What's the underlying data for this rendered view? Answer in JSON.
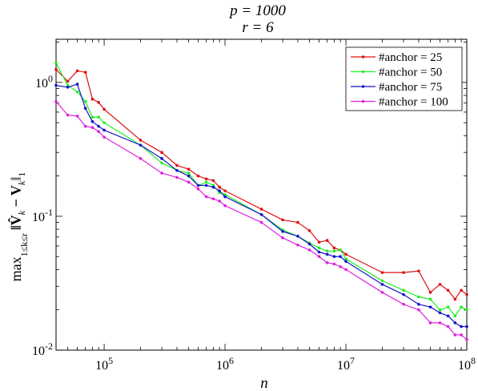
{
  "chart_data": {
    "type": "line",
    "title_lines": [
      "p = 1000",
      "r = 6"
    ],
    "xlabel": "n",
    "ylabel": "max_{1≤k≤r} ||V̂_k − V_k||_1",
    "ylabel_parts": {
      "op": "max",
      "sub": "1≤k≤r",
      "expr": "‖V̂",
      "k1": "k",
      "minus": " − V",
      "k2": "k",
      "norm": "‖",
      "one": "1"
    },
    "x_scale": "log",
    "y_scale": "log",
    "xlim": [
      40000,
      100000000
    ],
    "ylim": [
      0.01,
      2.1
    ],
    "x_ticks": [
      {
        "value": 100000,
        "base": "10",
        "exp": "5"
      },
      {
        "value": 1000000,
        "base": "10",
        "exp": "6"
      },
      {
        "value": 10000000,
        "base": "10",
        "exp": "7"
      },
      {
        "value": 100000000,
        "base": "10",
        "exp": "8"
      }
    ],
    "y_ticks": [
      {
        "value": 0.01,
        "base": "10",
        "exp": "-2"
      },
      {
        "value": 0.1,
        "base": "10",
        "exp": "-1"
      },
      {
        "value": 1,
        "base": "10",
        "exp": "0"
      }
    ],
    "legend_position": "top-right",
    "x": [
      40000,
      50000,
      60000,
      70000,
      80000,
      90000,
      100000,
      200000,
      300000,
      400000,
      500000,
      600000,
      700000,
      800000,
      900000,
      1000000,
      2000000,
      3000000,
      4000000,
      5000000,
      6000000,
      7000000,
      8000000,
      9000000,
      10000000,
      20000000,
      30000000,
      40000000,
      50000000,
      60000000,
      70000000,
      80000000,
      90000000,
      100000000
    ],
    "series": [
      {
        "name": "#anchor = 25",
        "color": "#e01010",
        "values": [
          1.25,
          1.02,
          1.22,
          1.19,
          0.75,
          0.71,
          0.63,
          0.37,
          0.3,
          0.24,
          0.225,
          0.2,
          0.19,
          0.185,
          0.165,
          0.155,
          0.113,
          0.094,
          0.09,
          0.078,
          0.064,
          0.066,
          0.058,
          0.056,
          0.052,
          0.038,
          0.038,
          0.039,
          0.027,
          0.031,
          0.028,
          0.024,
          0.028,
          0.026
        ]
      },
      {
        "name": "#anchor = 50",
        "color": "#22ee22",
        "values": [
          1.4,
          0.95,
          0.85,
          0.72,
          0.55,
          0.55,
          0.5,
          0.34,
          0.25,
          0.22,
          0.21,
          0.17,
          0.18,
          0.17,
          0.15,
          0.145,
          0.103,
          0.079,
          0.071,
          0.063,
          0.058,
          0.055,
          0.055,
          0.056,
          0.048,
          0.033,
          0.028,
          0.025,
          0.024,
          0.02,
          0.021,
          0.018,
          0.021,
          0.02
        ]
      },
      {
        "name": "#anchor = 75",
        "color": "#1414cc",
        "values": [
          0.95,
          0.92,
          0.97,
          0.64,
          0.51,
          0.47,
          0.44,
          0.34,
          0.27,
          0.22,
          0.2,
          0.17,
          0.17,
          0.165,
          0.155,
          0.14,
          0.103,
          0.077,
          0.071,
          0.062,
          0.054,
          0.052,
          0.05,
          0.05,
          0.046,
          0.031,
          0.026,
          0.022,
          0.021,
          0.019,
          0.018,
          0.016,
          0.015,
          0.015
        ]
      },
      {
        "name": "#anchor = 100",
        "color": "#dd22dd",
        "values": [
          0.72,
          0.57,
          0.56,
          0.47,
          0.46,
          0.43,
          0.39,
          0.27,
          0.21,
          0.195,
          0.18,
          0.16,
          0.14,
          0.135,
          0.13,
          0.12,
          0.09,
          0.069,
          0.061,
          0.056,
          0.05,
          0.045,
          0.044,
          0.042,
          0.04,
          0.027,
          0.022,
          0.02,
          0.016,
          0.016,
          0.015,
          0.013,
          0.013,
          0.012
        ]
      }
    ]
  }
}
